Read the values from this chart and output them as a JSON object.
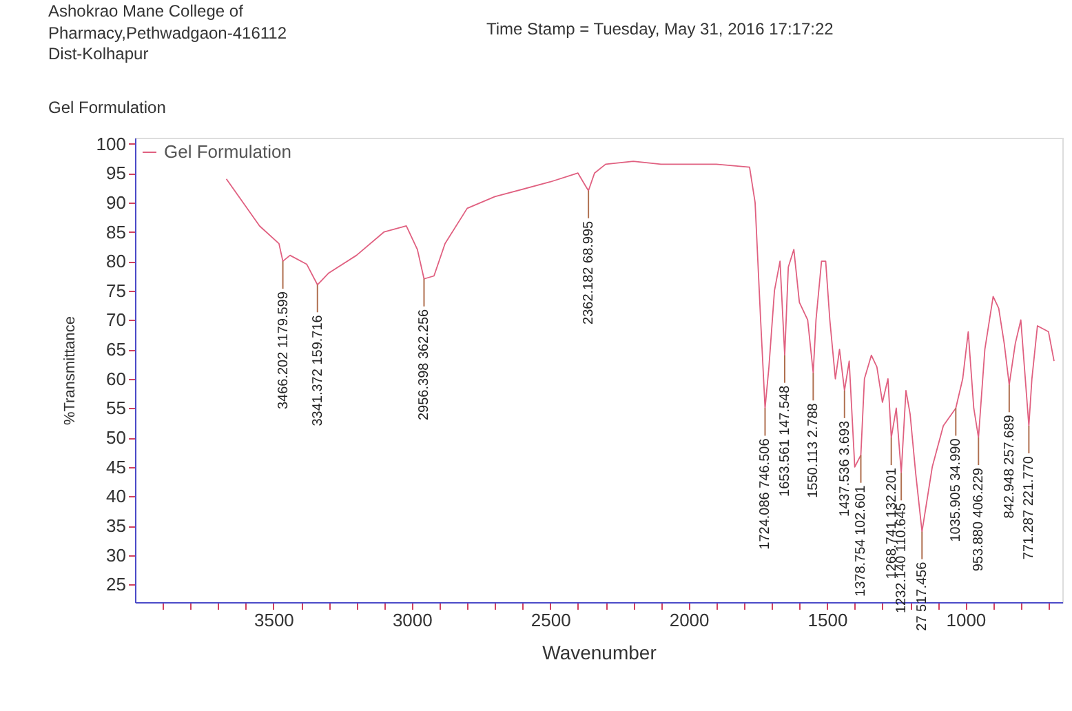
{
  "chart_data": {
    "type": "line",
    "title": "Gel Formulation",
    "xlabel": "Wavenumber",
    "ylabel": "%Transmittance",
    "annotations": [
      "Ashokrao Mane College of",
      "Pharmacy,Pethwadgaon-416112",
      "Dist-Kolhapur",
      "Time Stamp = Tuesday, May 31, 2016 17:17:22",
      {
        "text": "3466.202 1179.599",
        "x": 3466,
        "y": 80
      },
      {
        "text": "3341.372 159.716",
        "x": 3341,
        "y": 76
      },
      {
        "text": "2956.398 362.256",
        "x": 2956,
        "y": 77
      },
      {
        "text": "2362.182 68.995",
        "x": 2362,
        "y": 92
      },
      {
        "text": "1724.086 746.506",
        "x": 1724,
        "y": 55
      },
      {
        "text": "1653.561 147.548",
        "x": 1653,
        "y": 64
      },
      {
        "text": "1550.113 2.788",
        "x": 1550,
        "y": 61
      },
      {
        "text": "1437.536 3.693",
        "x": 1437,
        "y": 58
      },
      {
        "text": "1378.754 102.601",
        "x": 1378,
        "y": 47
      },
      {
        "text": "1268.741 132.201",
        "x": 1268,
        "y": 50
      },
      {
        "text": "1232.140 110.645",
        "x": 1232,
        "y": 44
      },
      {
        "text": "27 517.456",
        "x": 1157,
        "y": 34
      },
      {
        "text": "1035.905 34.990",
        "x": 1035,
        "y": 55
      },
      {
        "text": "953.880 406.229",
        "x": 953,
        "y": 50
      },
      {
        "text": "842.948 257.689",
        "x": 842,
        "y": 59
      },
      {
        "text": "771.287 221.770",
        "x": 771,
        "y": 52
      }
    ],
    "xlim": [
      4000,
      650
    ],
    "ylim": [
      22,
      101
    ],
    "xticks": [
      {
        "value": 3900,
        "label": null
      },
      {
        "value": 3800,
        "label": null
      },
      {
        "value": 3700,
        "label": null
      },
      {
        "value": 3600,
        "label": null
      },
      3500,
      {
        "value": 3400,
        "label": null
      },
      {
        "value": 3300,
        "label": null
      },
      {
        "value": 3200,
        "label": null
      },
      {
        "value": 3100,
        "label": null
      },
      3000,
      {
        "value": 2900,
        "label": null
      },
      {
        "value": 2800,
        "label": null
      },
      {
        "value": 2700,
        "label": null
      },
      {
        "value": 2600,
        "label": null
      },
      2500,
      {
        "value": 2400,
        "label": null
      },
      {
        "value": 2300,
        "label": null
      },
      {
        "value": 2200,
        "label": null
      },
      {
        "value": 2100,
        "label": null
      },
      2000,
      {
        "value": 1900,
        "label": null
      },
      {
        "value": 1800,
        "label": null
      },
      {
        "value": 1700,
        "label": null
      },
      {
        "value": 1600,
        "label": null
      },
      1500,
      {
        "value": 1400,
        "label": null
      },
      {
        "value": 1300,
        "label": null
      },
      {
        "value": 1200,
        "label": null
      },
      {
        "value": 1100,
        "label": null
      },
      1000,
      {
        "value": 900,
        "label": null
      },
      {
        "value": 800,
        "label": null
      },
      {
        "value": 700,
        "label": null
      }
    ],
    "yticks": [
      25,
      30,
      35,
      40,
      45,
      50,
      55,
      60,
      65,
      70,
      75,
      80,
      85,
      90,
      95,
      100
    ],
    "grid": false,
    "legend": "top left",
    "marker": "none",
    "line_style": "solid",
    "x": [
      3670,
      3550,
      3480,
      3466,
      3440,
      3380,
      3341,
      3300,
      3200,
      3100,
      3020,
      2980,
      2956,
      2920,
      2880,
      2800,
      2700,
      2500,
      2400,
      2375,
      2362,
      2340,
      2300,
      2200,
      2100,
      2000,
      1900,
      1780,
      1760,
      1740,
      1724,
      1710,
      1690,
      1670,
      1653,
      1640,
      1620,
      1600,
      1570,
      1550,
      1540,
      1520,
      1505,
      1490,
      1470,
      1455,
      1437,
      1420,
      1400,
      1378,
      1365,
      1340,
      1320,
      1300,
      1280,
      1268,
      1250,
      1232,
      1215,
      1200,
      1180,
      1157,
      1120,
      1080,
      1050,
      1035,
      1010,
      990,
      970,
      953,
      930,
      900,
      880,
      860,
      842,
      820,
      800,
      771,
      760,
      740,
      700,
      680
    ],
    "series": [
      {
        "name": "Gel Formulation",
        "color": "#e06080",
        "values": [
          94,
          86,
          83,
          80,
          81,
          79.5,
          76,
          78,
          81,
          85,
          86,
          82,
          77,
          77.5,
          83,
          89,
          91,
          93.5,
          95,
          93,
          92,
          95,
          96.5,
          97,
          96.5,
          96.5,
          96.5,
          96,
          90,
          70,
          55,
          62,
          75,
          80,
          64,
          79,
          82,
          73,
          70,
          61,
          70,
          80,
          80,
          70,
          60,
          65,
          58,
          63,
          45,
          47,
          60,
          64,
          62,
          56,
          60,
          50,
          55,
          44,
          58,
          54,
          44,
          34,
          45,
          52,
          54,
          55,
          60,
          68,
          55,
          50,
          65,
          74,
          72,
          66,
          59,
          66,
          70,
          52,
          60,
          69,
          68,
          63
        ]
      }
    ]
  }
}
